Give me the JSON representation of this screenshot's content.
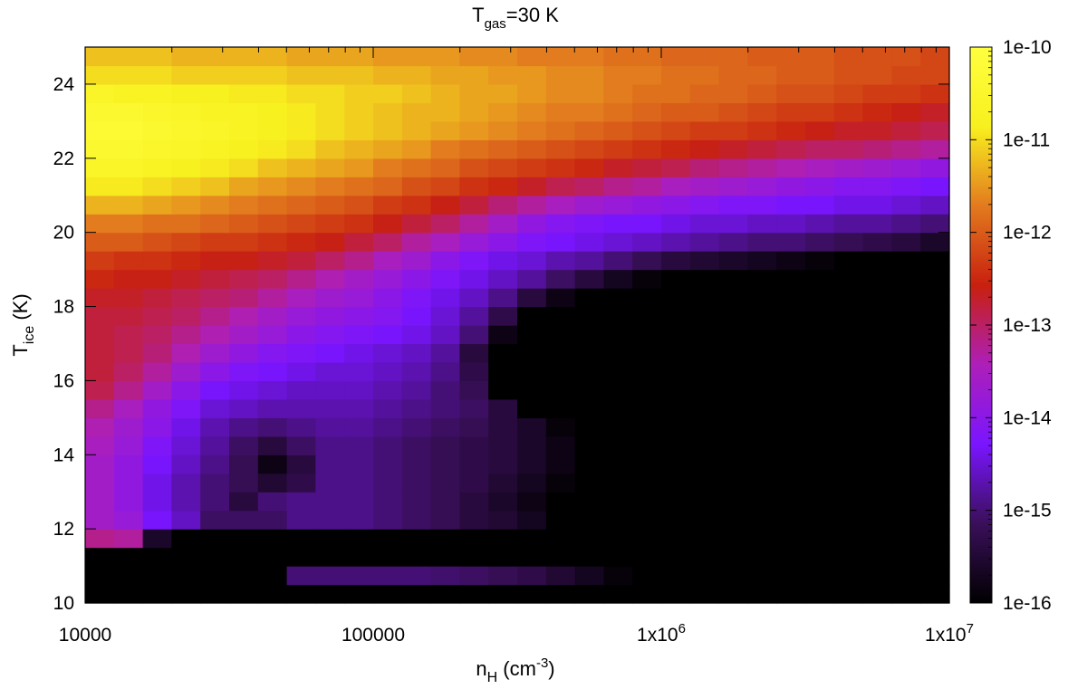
{
  "chart_data": {
    "type": "heatmap",
    "title": {
      "main": "T",
      "sub": "gas",
      "rest": "=30 K"
    },
    "xlabel": {
      "main": "n",
      "sub": "H",
      "rest": " (cm",
      "sup": "-3",
      "end": ")"
    },
    "ylabel": {
      "main": "T",
      "sub": "ice",
      "rest": " (K)"
    },
    "x_scale": "log",
    "xlim": [
      10000,
      10000000
    ],
    "ylim": [
      10,
      25
    ],
    "x_ticks": [
      {
        "value": 10000,
        "label": "10000"
      },
      {
        "value": 100000,
        "label": "100000"
      },
      {
        "value": 1000000,
        "label": "1x10",
        "sup": "6"
      },
      {
        "value": 10000000,
        "label": "1x10",
        "sup": "7"
      }
    ],
    "y_ticks": [
      {
        "value": 10,
        "label": "10"
      },
      {
        "value": 12,
        "label": "12"
      },
      {
        "value": 14,
        "label": "14"
      },
      {
        "value": 16,
        "label": "16"
      },
      {
        "value": 18,
        "label": "18"
      },
      {
        "value": 20,
        "label": "20"
      },
      {
        "value": 22,
        "label": "22"
      },
      {
        "value": 24,
        "label": "24"
      }
    ],
    "colorbar": {
      "scale": "log",
      "range": [
        1e-16,
        1e-10
      ],
      "ticks": [
        "1e-16",
        "1e-15",
        "1e-14",
        "1e-13",
        "1e-12",
        "1e-11",
        "1e-10"
      ],
      "colormap": [
        "#000000",
        "#3a0f5a",
        "#7a15ff",
        "#ad1fb8",
        "#c8200f",
        "#e27a1e",
        "#f8f01e",
        "#ffff40"
      ]
    },
    "grid": {
      "x_log_min": 4.0,
      "x_log_max": 7.0,
      "nx": 30,
      "y_min": 10,
      "y_max": 25,
      "ny": 30,
      "z_log10": [
        [
          -16,
          -16,
          -16,
          -16,
          -16,
          -16.5,
          -16.5,
          -16.5,
          -16.5,
          -16.5,
          -16.5,
          -16.5,
          -16.5,
          -16.5,
          -16.5,
          -16.5,
          -16.5,
          -16.5,
          -16.5,
          -16.5,
          -16.5,
          -16.5,
          -16.5,
          -16.5,
          -16.5,
          -16.5,
          -16.5,
          -16.5,
          -16.5,
          -16.5
        ],
        [
          -16.5,
          -16.5,
          -16.5,
          -16.5,
          -16.5,
          -16.5,
          -16.5,
          -15,
          -15,
          -15,
          -15,
          -15,
          -15.05,
          -15.1,
          -15.2,
          -15.3,
          -15.5,
          -15.7,
          -15.9,
          -16.3,
          -16.5,
          -16.5,
          -16.5,
          -16.5,
          -16.5,
          -16.5,
          -16.5,
          -16.5,
          -16.5,
          -16.5
        ],
        [
          -16.5,
          -16.5,
          -16.5,
          -16.5,
          -16.5,
          -16.5,
          -16.5,
          -16.5,
          -16.5,
          -16.5,
          -16.5,
          -16.5,
          -16.5,
          -16.5,
          -16.5,
          -16.5,
          -16.5,
          -16.5,
          -16.5,
          -16.5,
          -16.5,
          -16.5,
          -16.5,
          -16.5,
          -16.5,
          -16.5,
          -16.5,
          -16.5,
          -16.5,
          -16.5
        ],
        [
          -13.2,
          -13.3,
          -15.6,
          -16.5,
          -16.5,
          -16.5,
          -16.5,
          -16.5,
          -16.5,
          -16.5,
          -16.5,
          -16.5,
          -16.5,
          -16.5,
          -16.5,
          -16.5,
          -16.5,
          -16.5,
          -16.5,
          -16.5,
          -16.5,
          -16.5,
          -16.5,
          -16.5,
          -16.5,
          -16.5,
          -16.5,
          -16.5,
          -16.5,
          -16.5
        ],
        [
          -13.6,
          -13.8,
          -14.3,
          -14.6,
          -15.1,
          -15.1,
          -15.1,
          -14.9,
          -14.9,
          -14.9,
          -15.0,
          -15.1,
          -15.2,
          -15.4,
          -15.5,
          -15.7,
          -16.0,
          -16.3,
          -16.5,
          -16.5,
          -16.5,
          -16.5,
          -16.5,
          -16.5,
          -16.5,
          -16.5,
          -16.5,
          -16.5,
          -16.5,
          -16.5
        ],
        [
          -13.6,
          -13.9,
          -14.4,
          -14.7,
          -15.0,
          -15.4,
          -15.0,
          -14.9,
          -14.9,
          -14.9,
          -15.0,
          -15.1,
          -15.2,
          -15.4,
          -15.6,
          -15.8,
          -16.1,
          -16.4,
          -16.5,
          -16.5,
          -16.5,
          -16.5,
          -16.5,
          -16.5,
          -16.5,
          -16.5,
          -16.5,
          -16.5,
          -16.5,
          -16.5
        ],
        [
          -13.6,
          -13.9,
          -14.4,
          -14.7,
          -15.0,
          -15.2,
          -15.5,
          -15.3,
          -14.9,
          -14.9,
          -15.0,
          -15.1,
          -15.2,
          -15.3,
          -15.5,
          -15.7,
          -15.9,
          -16.2,
          -16.5,
          -16.5,
          -16.5,
          -16.5,
          -16.5,
          -16.5,
          -16.5,
          -16.5,
          -16.5,
          -16.5,
          -16.5,
          -16.5
        ],
        [
          -13.6,
          -13.9,
          -14.3,
          -14.6,
          -14.9,
          -15.2,
          -15.8,
          -15.4,
          -14.9,
          -14.9,
          -15.0,
          -15.1,
          -15.2,
          -15.3,
          -15.4,
          -15.6,
          -15.8,
          -16.1,
          -16.4,
          -16.5,
          -16.5,
          -16.5,
          -16.5,
          -16.5,
          -16.5,
          -16.5,
          -16.5,
          -16.5,
          -16.5,
          -16.5
        ],
        [
          -13.5,
          -13.8,
          -14.2,
          -14.5,
          -14.8,
          -15.1,
          -15.4,
          -15.1,
          -14.9,
          -14.9,
          -15.0,
          -15.1,
          -15.2,
          -15.3,
          -15.4,
          -15.6,
          -15.8,
          -16.0,
          -16.3,
          -16.5,
          -16.5,
          -16.5,
          -16.5,
          -16.5,
          -16.5,
          -16.5,
          -16.5,
          -16.5,
          -16.5,
          -16.5
        ],
        [
          -13.4,
          -13.7,
          -14.0,
          -14.4,
          -14.7,
          -14.9,
          -15.0,
          -14.9,
          -14.8,
          -14.8,
          -14.9,
          -15.0,
          -15.1,
          -15.2,
          -15.4,
          -15.6,
          -15.9,
          -16.2,
          -16.5,
          -16.5,
          -16.5,
          -16.5,
          -16.5,
          -16.5,
          -16.5,
          -16.5,
          -16.5,
          -16.5,
          -16.5,
          -16.5
        ],
        [
          -13.2,
          -13.5,
          -13.9,
          -14.2,
          -14.5,
          -14.6,
          -14.7,
          -14.7,
          -14.7,
          -14.7,
          -14.8,
          -14.9,
          -15.0,
          -15.1,
          -15.4,
          -16.5,
          -16.5,
          -16.5,
          -16.5,
          -16.5,
          -16.5,
          -16.5,
          -16.5,
          -16.5,
          -16.5,
          -16.5,
          -16.5,
          -16.5,
          -16.5,
          -16.5
        ],
        [
          -12.9,
          -13.2,
          -13.6,
          -14.0,
          -14.3,
          -14.4,
          -14.5,
          -14.6,
          -14.6,
          -14.6,
          -14.7,
          -14.8,
          -15.0,
          -15.2,
          -16.5,
          -16.5,
          -16.5,
          -16.5,
          -16.5,
          -16.5,
          -16.5,
          -16.5,
          -16.5,
          -16.5,
          -16.5,
          -16.5,
          -16.5,
          -16.5,
          -16.5,
          -16.5
        ],
        [
          -12.8,
          -13.0,
          -13.3,
          -13.7,
          -14.0,
          -14.2,
          -14.3,
          -14.4,
          -14.5,
          -14.5,
          -14.6,
          -14.7,
          -14.9,
          -15.3,
          -16.0,
          -16.5,
          -16.5,
          -16.5,
          -16.5,
          -16.5,
          -16.5,
          -16.5,
          -16.5,
          -16.5,
          -16.5,
          -16.5,
          -16.5,
          -16.5,
          -16.5,
          -16.5
        ],
        [
          -12.8,
          -12.9,
          -13.1,
          -13.4,
          -13.7,
          -13.9,
          -14.1,
          -14.2,
          -14.3,
          -14.4,
          -14.5,
          -14.6,
          -14.8,
          -15.4,
          -16.2,
          -16.5,
          -16.5,
          -16.5,
          -16.5,
          -16.5,
          -16.5,
          -16.5,
          -16.5,
          -16.5,
          -16.5,
          -16.5,
          -16.5,
          -16.5,
          -16.5,
          -16.5
        ],
        [
          -12.8,
          -12.9,
          -13.0,
          -13.2,
          -13.4,
          -13.6,
          -13.8,
          -14.0,
          -14.1,
          -14.2,
          -14.3,
          -14.4,
          -14.6,
          -15.0,
          -15.8,
          -16.5,
          -16.5,
          -16.5,
          -16.5,
          -16.5,
          -16.5,
          -16.5,
          -16.5,
          -16.5,
          -16.5,
          -16.5,
          -16.5,
          -16.5,
          -16.5,
          -16.5
        ],
        [
          -12.8,
          -12.8,
          -12.9,
          -13.0,
          -13.2,
          -13.4,
          -13.6,
          -13.8,
          -13.9,
          -14.0,
          -14.1,
          -14.3,
          -14.5,
          -14.8,
          -15.3,
          -16.0,
          -16.5,
          -16.5,
          -16.5,
          -16.5,
          -16.5,
          -16.5,
          -16.5,
          -16.5,
          -16.5,
          -16.5,
          -16.5,
          -16.5,
          -16.5,
          -16.5
        ],
        [
          -12.7,
          -12.7,
          -12.8,
          -12.9,
          -13.0,
          -13.1,
          -13.3,
          -13.5,
          -13.7,
          -13.8,
          -14.0,
          -14.2,
          -14.4,
          -14.6,
          -14.9,
          -15.4,
          -15.8,
          -16.2,
          -16.5,
          -16.5,
          -16.5,
          -16.5,
          -16.5,
          -16.5,
          -16.5,
          -16.5,
          -16.5,
          -16.5,
          -16.5,
          -16.5
        ],
        [
          -12.5,
          -12.6,
          -12.6,
          -12.7,
          -12.8,
          -12.9,
          -13.0,
          -13.2,
          -13.4,
          -13.6,
          -13.8,
          -14.0,
          -14.2,
          -14.4,
          -14.6,
          -14.8,
          -15.1,
          -15.4,
          -15.7,
          -15.9,
          -16.0,
          -16.1,
          -16.2,
          -16.3,
          -16.5,
          -16.5,
          -16.5,
          -16.5,
          -16.5,
          -16.5
        ],
        [
          -12.3,
          -12.4,
          -12.4,
          -12.5,
          -12.6,
          -12.6,
          -12.7,
          -12.8,
          -13.0,
          -13.2,
          -13.5,
          -13.7,
          -14.0,
          -14.2,
          -14.4,
          -14.5,
          -14.7,
          -14.8,
          -15.0,
          -15.2,
          -15.4,
          -15.5,
          -15.6,
          -15.7,
          -15.8,
          -15.9,
          -16.0,
          -16.1,
          -16.2,
          -16.5
        ],
        [
          -12.0,
          -12.0,
          -12.1,
          -12.2,
          -12.3,
          -12.3,
          -12.4,
          -12.5,
          -12.6,
          -12.8,
          -13.0,
          -13.3,
          -13.5,
          -13.8,
          -14.0,
          -14.2,
          -14.3,
          -14.4,
          -14.5,
          -14.6,
          -14.7,
          -14.8,
          -14.9,
          -15.0,
          -15.0,
          -15.1,
          -15.2,
          -15.3,
          -15.4,
          -15.6
        ],
        [
          -11.7,
          -11.7,
          -11.8,
          -11.8,
          -11.9,
          -12.0,
          -12.1,
          -12.2,
          -12.3,
          -12.4,
          -12.6,
          -12.8,
          -13.0,
          -13.3,
          -13.6,
          -13.9,
          -14.1,
          -14.2,
          -14.3,
          -14.3,
          -14.4,
          -14.5,
          -14.5,
          -14.6,
          -14.6,
          -14.7,
          -14.8,
          -14.8,
          -14.9,
          -15.0
        ],
        [
          -11.3,
          -11.3,
          -11.4,
          -11.5,
          -11.6,
          -11.7,
          -11.8,
          -11.9,
          -12.0,
          -12.1,
          -12.3,
          -12.4,
          -12.6,
          -12.8,
          -13.1,
          -13.3,
          -13.5,
          -13.7,
          -13.8,
          -13.9,
          -14.0,
          -14.1,
          -14.2,
          -14.2,
          -14.3,
          -14.3,
          -14.4,
          -14.4,
          -14.5,
          -14.6
        ],
        [
          -10.9,
          -10.9,
          -11.0,
          -11.1,
          -11.2,
          -11.4,
          -11.5,
          -11.6,
          -11.7,
          -11.8,
          -11.9,
          -12.1,
          -12.2,
          -12.4,
          -12.5,
          -12.7,
          -12.9,
          -13.0,
          -13.2,
          -13.3,
          -13.5,
          -13.6,
          -13.7,
          -13.8,
          -13.9,
          -14.0,
          -14.1,
          -14.1,
          -14.2,
          -14.3
        ],
        [
          -10.6,
          -10.6,
          -10.7,
          -10.8,
          -10.9,
          -11.0,
          -11.2,
          -11.3,
          -11.4,
          -11.5,
          -11.7,
          -11.8,
          -11.9,
          -12.1,
          -12.2,
          -12.3,
          -12.4,
          -12.5,
          -12.7,
          -12.8,
          -12.9,
          -13.1,
          -13.2,
          -13.3,
          -13.4,
          -13.5,
          -13.6,
          -13.7,
          -13.8,
          -13.9
        ],
        [
          -10.4,
          -10.4,
          -10.5,
          -10.6,
          -10.7,
          -10.8,
          -10.9,
          -11.0,
          -11.2,
          -11.3,
          -11.4,
          -11.5,
          -11.7,
          -11.8,
          -11.9,
          -12.0,
          -12.1,
          -12.2,
          -12.3,
          -12.4,
          -12.5,
          -12.6,
          -12.7,
          -12.8,
          -12.9,
          -13.0,
          -13.0,
          -13.1,
          -13.2,
          -13.3
        ],
        [
          -10.3,
          -10.3,
          -10.4,
          -10.5,
          -10.6,
          -10.7,
          -10.8,
          -10.9,
          -11.0,
          -11.1,
          -11.2,
          -11.3,
          -11.4,
          -11.5,
          -11.6,
          -11.7,
          -11.8,
          -11.9,
          -12.0,
          -12.1,
          -12.2,
          -12.3,
          -12.3,
          -12.4,
          -12.5,
          -12.6,
          -12.7,
          -12.7,
          -12.8,
          -12.9
        ],
        [
          -10.4,
          -10.4,
          -10.5,
          -10.6,
          -10.7,
          -10.7,
          -10.8,
          -10.9,
          -11.0,
          -11.1,
          -11.2,
          -11.3,
          -11.3,
          -11.4,
          -11.5,
          -11.6,
          -11.7,
          -11.7,
          -11.8,
          -11.9,
          -12.0,
          -12.0,
          -12.1,
          -12.2,
          -12.3,
          -12.3,
          -12.4,
          -12.5,
          -12.6,
          -12.7
        ],
        [
          -10.6,
          -10.7,
          -10.7,
          -10.8,
          -10.8,
          -10.9,
          -10.9,
          -11.0,
          -11.0,
          -11.1,
          -11.1,
          -11.2,
          -11.3,
          -11.4,
          -11.4,
          -11.5,
          -11.6,
          -11.6,
          -11.7,
          -11.8,
          -11.8,
          -11.9,
          -11.9,
          -12.0,
          -12.1,
          -12.1,
          -12.2,
          -12.3,
          -12.3,
          -12.4
        ],
        [
          -11.0,
          -11.0,
          -11.0,
          -11.1,
          -11.1,
          -11.1,
          -11.1,
          -11.2,
          -11.2,
          -11.2,
          -11.3,
          -11.3,
          -11.4,
          -11.4,
          -11.5,
          -11.5,
          -11.6,
          -11.6,
          -11.7,
          -11.7,
          -11.8,
          -11.8,
          -11.9,
          -11.9,
          -12.0,
          -12.0,
          -12.1,
          -12.1,
          -12.2,
          -12.2
        ],
        [
          -11.2,
          -11.2,
          -11.2,
          -11.3,
          -11.3,
          -11.3,
          -11.3,
          -11.4,
          -11.4,
          -11.4,
          -11.5,
          -11.5,
          -11.5,
          -11.6,
          -11.6,
          -11.7,
          -11.7,
          -11.7,
          -11.8,
          -11.8,
          -11.9,
          -11.9,
          -11.9,
          -12.0,
          -12.0,
          -12.0,
          -12.1,
          -12.1,
          -12.1,
          -12.2
        ]
      ]
    }
  }
}
